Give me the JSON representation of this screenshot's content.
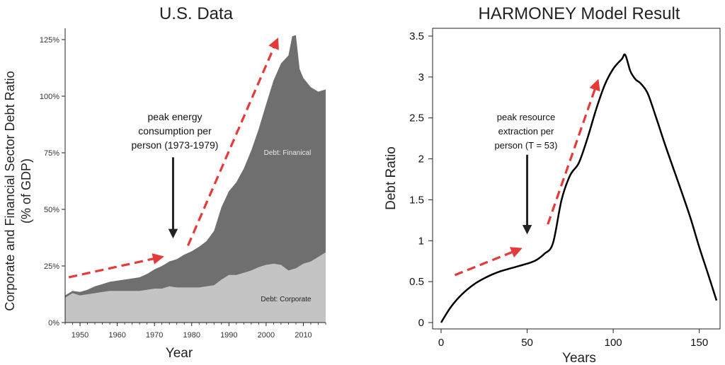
{
  "chart_data": [
    {
      "type": "area",
      "title": "U.S. Data",
      "xlabel": "Year",
      "ylabel_line1": "Corporate and Financial Sector Debt Ratio",
      "ylabel_line2": "(% of GDP)",
      "xlim": [
        1946,
        2016
      ],
      "ylim": [
        0,
        130
      ],
      "xticks": [
        1950,
        1960,
        1970,
        1980,
        1990,
        2000,
        2010
      ],
      "yticks": [
        0,
        25,
        50,
        75,
        100,
        125
      ],
      "ytick_labels": [
        "0%",
        "25%",
        "50%",
        "75%",
        "100%",
        "125%"
      ],
      "annotation": {
        "text_lines": [
          "peak energy",
          "consumption per",
          "person (1973-1979)"
        ],
        "arrow_x": 1975,
        "arrow_from_y": 73,
        "arrow_to_y": 38
      },
      "trend_arrows": [
        {
          "from": [
            1947,
            20
          ],
          "to": [
            1972,
            29
          ]
        },
        {
          "from": [
            1979,
            34
          ],
          "to": [
            2003,
            125
          ]
        }
      ],
      "colors": {
        "corporate": "#c4c4c4",
        "financial": "#6f6f6f",
        "trend": "#e53a3a",
        "annot_arrow": "#222222"
      },
      "series": [
        {
          "name": "Debt: Corporate",
          "x": [
            1946,
            1948,
            1950,
            1952,
            1954,
            1956,
            1958,
            1960,
            1962,
            1964,
            1966,
            1968,
            1970,
            1972,
            1974,
            1976,
            1978,
            1980,
            1982,
            1984,
            1986,
            1988,
            1990,
            1992,
            1994,
            1996,
            1998,
            2000,
            2002,
            2004,
            2006,
            2008,
            2010,
            2012,
            2014,
            2016
          ],
          "values": [
            11,
            13,
            12,
            12.5,
            13,
            13.5,
            14,
            14,
            14,
            14,
            14,
            14.5,
            15,
            15,
            16,
            15.5,
            15.5,
            15.5,
            15.5,
            16,
            16.5,
            19,
            21,
            21,
            22,
            23,
            24.5,
            25.5,
            26,
            25.5,
            23,
            24,
            26,
            27,
            29,
            31
          ]
        },
        {
          "name": "Debt: Finanical",
          "x": [
            1946,
            1948,
            1950,
            1952,
            1954,
            1956,
            1958,
            1960,
            1962,
            1964,
            1966,
            1968,
            1970,
            1972,
            1974,
            1976,
            1978,
            1980,
            1982,
            1984,
            1986,
            1988,
            1990,
            1992,
            1994,
            1996,
            1998,
            2000,
            2002,
            2004,
            2006,
            2007,
            2008,
            2009,
            2010,
            2012,
            2014,
            2016
          ],
          "values": [
            1,
            1,
            1.5,
            2,
            3,
            3.5,
            4,
            4.5,
            5,
            5.5,
            6,
            7,
            8.5,
            10,
            11,
            12.5,
            14.5,
            16,
            18,
            20,
            24,
            32,
            37,
            41,
            46,
            53,
            61,
            71,
            81,
            89,
            95,
            103,
            103,
            87,
            82,
            77,
            73,
            72
          ]
        }
      ]
    },
    {
      "type": "line",
      "title": "HARMONEY Model Result",
      "xlabel": "Years",
      "ylabel": "Debt Ratio",
      "xlim": [
        0,
        160
      ],
      "ylim": [
        0,
        3.5
      ],
      "xticks": [
        0,
        50,
        100,
        150
      ],
      "yticks": [
        0,
        0.5,
        1,
        1.5,
        2,
        2.5,
        3,
        3.5
      ],
      "ytick_labels": [
        "0",
        "0.5",
        "1",
        "1.5",
        "2",
        "2.5",
        "3",
        "3.5"
      ],
      "annotation": {
        "text_lines": [
          "peak resource",
          "extraction per",
          "person (T = 53)"
        ],
        "arrow_x": 50,
        "arrow_from_y": 2.05,
        "arrow_to_y": 1.1
      },
      "trend_arrows": [
        {
          "from": [
            8,
            0.58
          ],
          "to": [
            46,
            0.9
          ]
        },
        {
          "from": [
            62,
            1.2
          ],
          "to": [
            91,
            2.95
          ]
        }
      ],
      "colors": {
        "line": "#000000",
        "trend": "#e53a3a",
        "annot_arrow": "#222222"
      },
      "series": [
        {
          "x": [
            0,
            5,
            10,
            15,
            20,
            25,
            30,
            35,
            40,
            45,
            50,
            55,
            60,
            65,
            70,
            75,
            80,
            85,
            90,
            95,
            100,
            105,
            107,
            110,
            113,
            116,
            120,
            125,
            130,
            135,
            140,
            145,
            150,
            155,
            160
          ],
          "values": [
            0,
            0.17,
            0.3,
            0.4,
            0.48,
            0.54,
            0.59,
            0.63,
            0.66,
            0.69,
            0.72,
            0.76,
            0.84,
            0.97,
            1.5,
            1.8,
            1.95,
            2.25,
            2.6,
            2.9,
            3.1,
            3.22,
            3.27,
            3.07,
            2.97,
            2.92,
            2.8,
            2.5,
            2.18,
            1.88,
            1.58,
            1.27,
            0.92,
            0.6,
            0.27
          ]
        }
      ]
    }
  ]
}
